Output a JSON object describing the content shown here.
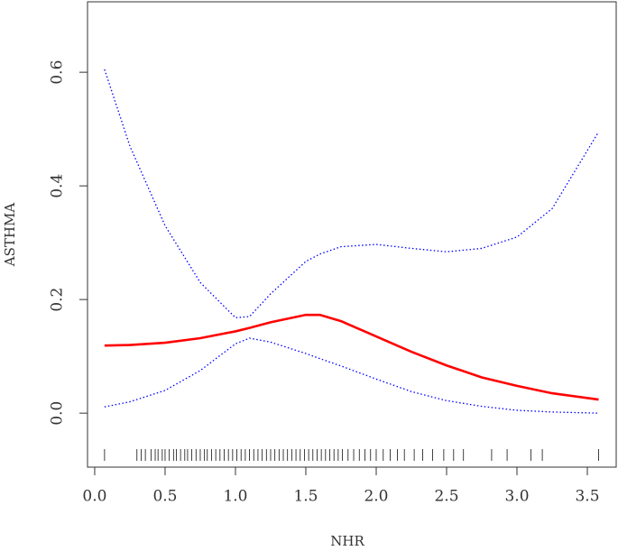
{
  "chart_data": {
    "type": "line",
    "xlabel": "NHR",
    "ylabel": "ASTHMA",
    "x": [
      0.07,
      0.25,
      0.5,
      0.75,
      1.0,
      1.1,
      1.25,
      1.5,
      1.6,
      1.75,
      2.0,
      2.25,
      2.5,
      2.75,
      3.0,
      3.25,
      3.58
    ],
    "series": [
      {
        "color": "#0000ff",
        "dashed": true,
        "values": [
          0.605,
          0.47,
          0.33,
          0.23,
          0.168,
          0.17,
          0.21,
          0.267,
          0.28,
          0.293,
          0.297,
          0.29,
          0.284,
          0.29,
          0.31,
          0.36,
          0.495
        ]
      },
      {
        "color": "#0000ff",
        "dashed": true,
        "values": [
          0.011,
          0.02,
          0.04,
          0.075,
          0.122,
          0.132,
          0.125,
          0.105,
          0.096,
          0.083,
          0.06,
          0.038,
          0.022,
          0.012,
          0.005,
          0.002,
          0.0
        ]
      },
      {
        "color": "#ff0000",
        "dashed": false,
        "values": [
          0.119,
          0.12,
          0.124,
          0.132,
          0.144,
          0.15,
          0.16,
          0.173,
          0.173,
          0.162,
          0.135,
          0.108,
          0.084,
          0.063,
          0.048,
          0.035,
          0.024
        ]
      }
    ],
    "rug": [
      0.07,
      0.3,
      0.33,
      0.36,
      0.4,
      0.43,
      0.45,
      0.48,
      0.5,
      0.53,
      0.56,
      0.58,
      0.61,
      0.64,
      0.66,
      0.69,
      0.72,
      0.75,
      0.78,
      0.8,
      0.83,
      0.86,
      0.89,
      0.92,
      0.95,
      0.98,
      1.01,
      1.04,
      1.07,
      1.1,
      1.13,
      1.16,
      1.19,
      1.22,
      1.25,
      1.28,
      1.31,
      1.34,
      1.37,
      1.4,
      1.43,
      1.46,
      1.49,
      1.52,
      1.55,
      1.58,
      1.61,
      1.64,
      1.67,
      1.7,
      1.73,
      1.76,
      1.8,
      1.84,
      1.88,
      1.92,
      1.96,
      2.0,
      2.05,
      2.1,
      2.15,
      2.2,
      2.27,
      2.33,
      2.4,
      2.48,
      2.55,
      2.62,
      2.82,
      2.93,
      3.1,
      3.18,
      3.58
    ],
    "xlim": [
      -0.051,
      3.705
    ],
    "ylim": [
      -0.095,
      0.724
    ],
    "xticks": [
      {
        "value": 0,
        "label": "0.0"
      },
      {
        "value": 0.5,
        "label": "0.5"
      },
      {
        "value": 1,
        "label": "1.0"
      },
      {
        "value": 1.5,
        "label": "1.5"
      },
      {
        "value": 2,
        "label": "2.0"
      },
      {
        "value": 2.5,
        "label": "2.5"
      },
      {
        "value": 3,
        "label": "3.0"
      },
      {
        "value": 3.5,
        "label": "3.5"
      }
    ],
    "yticks": [
      {
        "value": 0,
        "label": "0.0"
      },
      {
        "value": 0.2,
        "label": "0.2"
      },
      0.4,
      0.6
    ]
  }
}
